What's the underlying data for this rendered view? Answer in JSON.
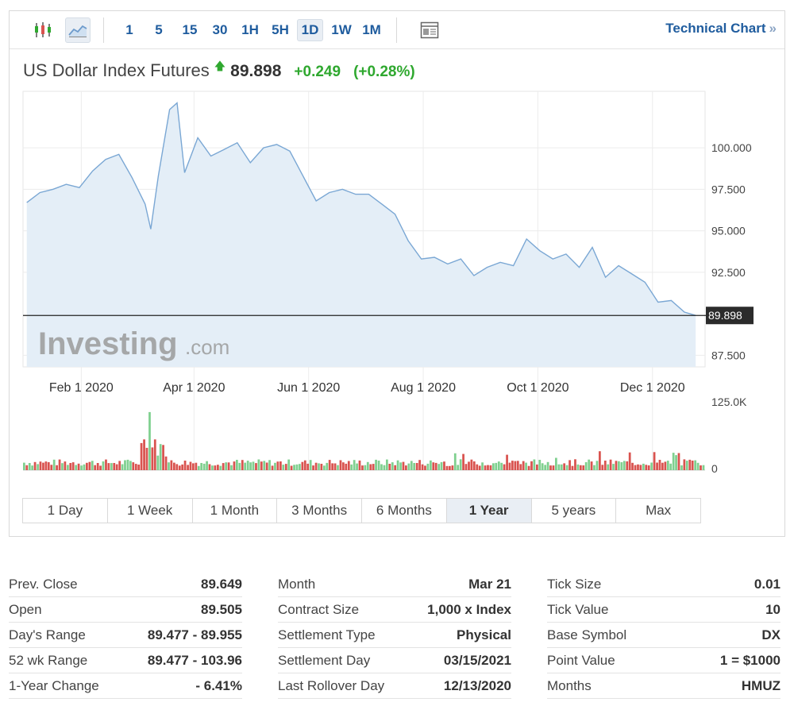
{
  "toolbar": {
    "intervals": [
      "1",
      "5",
      "15",
      "30",
      "1H",
      "5H",
      "1D",
      "1W",
      "1M"
    ],
    "active_interval": "1D",
    "technical_chart_label": "Technical Chart",
    "technical_chart_chevron": "»"
  },
  "quote": {
    "title": "US Dollar Index Futures",
    "arrow": "🡅",
    "price": "89.898",
    "change": "+0.249",
    "change_pct": "(+0.28%)",
    "up_color": "#2fa82f"
  },
  "chart_data": {
    "type": "area",
    "price_series": {
      "x": [
        "2020-01-03",
        "2020-01-10",
        "2020-01-17",
        "2020-01-24",
        "2020-01-31",
        "2020-02-07",
        "2020-02-14",
        "2020-02-21",
        "2020-02-28",
        "2020-03-06",
        "2020-03-09",
        "2020-03-13",
        "2020-03-19",
        "2020-03-23",
        "2020-03-27",
        "2020-04-03",
        "2020-04-10",
        "2020-04-17",
        "2020-04-24",
        "2020-05-01",
        "2020-05-08",
        "2020-05-15",
        "2020-05-22",
        "2020-05-29",
        "2020-06-05",
        "2020-06-12",
        "2020-06-19",
        "2020-06-26",
        "2020-07-03",
        "2020-07-10",
        "2020-07-17",
        "2020-07-24",
        "2020-07-31",
        "2020-08-07",
        "2020-08-14",
        "2020-08-21",
        "2020-08-28",
        "2020-09-04",
        "2020-09-11",
        "2020-09-18",
        "2020-09-25",
        "2020-10-02",
        "2020-10-09",
        "2020-10-16",
        "2020-10-23",
        "2020-10-30",
        "2020-11-06",
        "2020-11-13",
        "2020-11-20",
        "2020-11-27",
        "2020-12-04",
        "2020-12-11",
        "2020-12-18",
        "2020-12-24"
      ],
      "values": [
        96.7,
        97.3,
        97.5,
        97.8,
        97.6,
        98.6,
        99.3,
        99.6,
        98.2,
        96.6,
        95.1,
        98.3,
        102.3,
        102.7,
        98.5,
        100.6,
        99.5,
        99.9,
        100.3,
        99.1,
        100.0,
        100.2,
        99.8,
        98.3,
        96.8,
        97.3,
        97.5,
        97.2,
        97.2,
        96.6,
        96.0,
        94.4,
        93.3,
        93.4,
        93.0,
        93.3,
        92.3,
        92.8,
        93.1,
        92.9,
        94.5,
        93.8,
        93.3,
        93.6,
        92.8,
        94.0,
        92.2,
        92.9,
        92.4,
        91.9,
        90.7,
        90.8,
        90.1,
        89.9
      ]
    },
    "y_ticks": [
      "100.000",
      "97.500",
      "95.000",
      "92.500",
      "87.500"
    ],
    "y_range": [
      86.8,
      103.4
    ],
    "x_ticks": [
      {
        "label": "Feb 1 2020",
        "date": "2020-02-01"
      },
      {
        "label": "Apr 1 2020",
        "date": "2020-04-01"
      },
      {
        "label": "Jun 1 2020",
        "date": "2020-06-01"
      },
      {
        "label": "Aug 1 2020",
        "date": "2020-08-01"
      },
      {
        "label": "Oct 1 2020",
        "date": "2020-10-01"
      },
      {
        "label": "Dec 1 2020",
        "date": "2020-12-01"
      }
    ],
    "x_range": [
      "2020-01-01",
      "2020-12-29"
    ],
    "current_price": 89.898,
    "current_price_label": "89.898",
    "volume_ticks": [
      "125.0K",
      "0"
    ],
    "volume_max": 125000,
    "line_color": "#7aa7d4",
    "fill_color": "#e4eef7",
    "volume_up_color": "#7fd08f",
    "volume_down_color": "#d9534f",
    "watermark_main": "Investing",
    "watermark_suffix": ".com"
  },
  "ranges": {
    "items": [
      "1 Day",
      "1 Week",
      "1 Month",
      "3 Months",
      "6 Months",
      "1 Year",
      "5 years",
      "Max"
    ],
    "active": "1 Year"
  },
  "stats": [
    [
      {
        "label": "Prev. Close",
        "value": "89.649"
      },
      {
        "label": "Open",
        "value": "89.505"
      },
      {
        "label": "Day's Range",
        "value": "89.477 - 89.955"
      },
      {
        "label": "52 wk Range",
        "value": "89.477 - 103.96"
      },
      {
        "label": "1-Year Change",
        "value": "- 6.41%"
      }
    ],
    [
      {
        "label": "Month",
        "value": "Mar 21"
      },
      {
        "label": "Contract Size",
        "value": "1,000 x Index"
      },
      {
        "label": "Settlement Type",
        "value": "Physical"
      },
      {
        "label": "Settlement Day",
        "value": "03/15/2021"
      },
      {
        "label": "Last Rollover Day",
        "value": "12/13/2020"
      }
    ],
    [
      {
        "label": "Tick Size",
        "value": "0.01"
      },
      {
        "label": "Tick Value",
        "value": "10"
      },
      {
        "label": "Base Symbol",
        "value": "DX"
      },
      {
        "label": "Point Value",
        "value": "1 = $1000"
      },
      {
        "label": "Months",
        "value": "HMUZ"
      }
    ]
  ]
}
